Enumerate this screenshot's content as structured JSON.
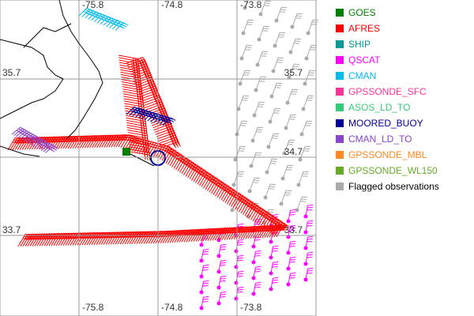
{
  "map": {
    "top_labels": [
      "-75.8",
      "-74.8",
      "-73.8"
    ],
    "bottom_labels": [
      "-75.8",
      "-74.8",
      "-73.8"
    ],
    "left_labels": [
      "35.7",
      "33.7"
    ],
    "right_labels": [
      "35.7",
      "34.7",
      "33.7"
    ]
  },
  "legend": [
    {
      "label": "GOES",
      "color": "#008000"
    },
    {
      "label": "AFRES",
      "color": "#ff0000"
    },
    {
      "label": "SHIP",
      "color": "#009999"
    },
    {
      "label": "QSCAT",
      "color": "#ff00ff"
    },
    {
      "label": "CMAN",
      "color": "#00bbee"
    },
    {
      "label": "GPSSONDE_SFC",
      "color": "#ff3399"
    },
    {
      "label": "ASOS_LD_TO",
      "color": "#33cc77"
    },
    {
      "label": "MOORED_BUOY",
      "color": "#000099"
    },
    {
      "label": "CMAN_LD_TO",
      "color": "#8844cc"
    },
    {
      "label": "GPSSONDE_MBL",
      "color": "#ff8822"
    },
    {
      "label": "GPSSONDE_WL150",
      "color": "#66aa22"
    },
    {
      "label": "Flagged observations",
      "color": "#aaaaaa"
    }
  ]
}
